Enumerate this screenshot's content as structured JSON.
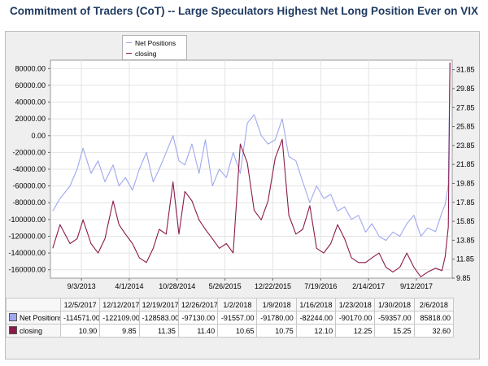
{
  "title": "Commitment of Traders (CoT) -- Large Speculators Highest Net Long Position Ever on VIX",
  "legend": {
    "net_positions": "Net Positions",
    "closing": "closing"
  },
  "colors": {
    "net_positions": "#9fa8ee",
    "closing": "#8b1a4a",
    "swatch_net": "#9fa8ee",
    "swatch_closing": "#8b1a4a"
  },
  "chart_data": {
    "type": "line",
    "title": "Commitment of Traders (CoT) -- Large Speculators Highest Net Long Position Ever on VIX",
    "xlabel": "",
    "ylabel": "",
    "grid": true,
    "legend_position": "top-left",
    "left_axis": {
      "ticks": [
        80000,
        60000,
        40000,
        20000,
        0,
        -20000,
        -40000,
        -60000,
        -80000,
        -100000,
        -120000,
        -140000,
        -160000
      ],
      "tick_labels": [
        "80000.00",
        "60000.00",
        "40000.00",
        "20000.00",
        "0.00",
        "-20000.00",
        "-40000.00",
        "-60000.00",
        "-80000.00",
        "-100000.00",
        "-120000.00",
        "-140000.00",
        "-160000.00"
      ],
      "range": [
        -170000,
        90000
      ]
    },
    "right_axis": {
      "ticks": [
        31.85,
        29.85,
        27.85,
        25.85,
        23.85,
        21.85,
        19.85,
        17.85,
        15.85,
        13.85,
        11.85,
        9.85
      ],
      "tick_labels": [
        "31.85",
        "29.85",
        "27.85",
        "25.85",
        "23.85",
        "21.85",
        "19.85",
        "17.85",
        "15.85",
        "13.85",
        "11.85",
        "9.85"
      ],
      "range": [
        9.85,
        32.85
      ]
    },
    "x_ticks": [
      "9/3/2013",
      "4/1/2014",
      "10/28/2014",
      "5/26/2015",
      "12/22/2015",
      "7/19/2016",
      "2/14/2017",
      "9/12/2017"
    ],
    "series": [
      {
        "name": "Net Positions",
        "axis": "left",
        "x": [
          "2013-04-30",
          "2013-06-01",
          "2013-07-15",
          "2013-08-15",
          "2013-09-10",
          "2013-10-15",
          "2013-11-15",
          "2013-12-15",
          "2014-01-20",
          "2014-02-15",
          "2014-03-15",
          "2014-04-15",
          "2014-05-15",
          "2014-06-15",
          "2014-07-15",
          "2014-08-10",
          "2014-09-10",
          "2014-10-10",
          "2014-11-05",
          "2014-12-01",
          "2015-01-01",
          "2015-02-01",
          "2015-03-01",
          "2015-04-01",
          "2015-05-01",
          "2015-06-01",
          "2015-07-01",
          "2015-08-01",
          "2015-09-01",
          "2015-10-01",
          "2015-11-01",
          "2015-12-01",
          "2016-01-01",
          "2016-02-01",
          "2016-03-01",
          "2016-04-01",
          "2016-05-01",
          "2016-06-01",
          "2016-07-01",
          "2016-08-01",
          "2016-09-01",
          "2016-10-01",
          "2016-11-01",
          "2016-12-01",
          "2017-01-01",
          "2017-02-01",
          "2017-03-01",
          "2017-04-01",
          "2017-05-01",
          "2017-06-01",
          "2017-07-01",
          "2017-08-01",
          "2017-09-01",
          "2017-10-01",
          "2017-11-01",
          "2017-12-05",
          "2018-01-02",
          "2018-01-16",
          "2018-01-30",
          "2018-02-06"
        ],
        "values": [
          -90000,
          -75000,
          -60000,
          -40000,
          -15000,
          -45000,
          -30000,
          -55000,
          -35000,
          -60000,
          -50000,
          -65000,
          -40000,
          -20000,
          -55000,
          -40000,
          -20000,
          0,
          -30000,
          -35000,
          -10000,
          -45000,
          -5000,
          -60000,
          -40000,
          -50000,
          -20000,
          -45000,
          15000,
          25000,
          0,
          -10000,
          -5000,
          20000,
          -25000,
          -30000,
          -55000,
          -80000,
          -60000,
          -75000,
          -70000,
          -90000,
          -85000,
          -100000,
          -95000,
          -115000,
          -105000,
          -120000,
          -125000,
          -115000,
          -120000,
          -105000,
          -95000,
          -120000,
          -110000,
          -114571,
          -91557,
          -82244,
          -59357,
          85818
        ]
      },
      {
        "name": "closing",
        "axis": "right",
        "x": [
          "2013-04-30",
          "2013-06-01",
          "2013-07-15",
          "2013-08-15",
          "2013-09-10",
          "2013-10-15",
          "2013-11-15",
          "2013-12-15",
          "2014-01-20",
          "2014-02-15",
          "2014-03-15",
          "2014-04-15",
          "2014-05-15",
          "2014-06-15",
          "2014-07-15",
          "2014-08-10",
          "2014-09-10",
          "2014-10-10",
          "2014-11-05",
          "2014-12-01",
          "2015-01-01",
          "2015-02-01",
          "2015-03-01",
          "2015-04-01",
          "2015-05-01",
          "2015-06-01",
          "2015-07-01",
          "2015-08-01",
          "2015-09-01",
          "2015-10-01",
          "2015-11-01",
          "2015-12-01",
          "2016-01-01",
          "2016-02-01",
          "2016-03-01",
          "2016-04-01",
          "2016-05-01",
          "2016-06-01",
          "2016-07-01",
          "2016-08-01",
          "2016-09-01",
          "2016-10-01",
          "2016-11-01",
          "2016-12-01",
          "2017-01-01",
          "2017-02-01",
          "2017-03-01",
          "2017-04-01",
          "2017-05-01",
          "2017-06-01",
          "2017-07-01",
          "2017-08-01",
          "2017-09-01",
          "2017-10-01",
          "2017-11-01",
          "2017-12-05",
          "2018-01-02",
          "2018-01-16",
          "2018-01-30",
          "2018-02-06"
        ],
        "values": [
          13.0,
          15.5,
          13.5,
          14.0,
          16.0,
          13.5,
          12.5,
          14.0,
          18.0,
          15.5,
          14.5,
          13.5,
          12.0,
          11.5,
          13.0,
          15.0,
          14.5,
          20.0,
          14.5,
          19.0,
          18.0,
          16.0,
          15.0,
          14.0,
          13.0,
          13.5,
          12.5,
          24.0,
          22.0,
          17.0,
          16.0,
          18.0,
          22.5,
          24.5,
          16.5,
          14.5,
          15.0,
          17.5,
          13.0,
          12.5,
          13.5,
          15.5,
          14.0,
          12.0,
          11.5,
          11.5,
          12.0,
          12.5,
          11.0,
          10.5,
          11.0,
          12.5,
          11.0,
          10.0,
          10.5,
          10.9,
          10.65,
          12.1,
          15.25,
          32.6
        ]
      }
    ],
    "table": {
      "dates": [
        "12/5/2017",
        "12/12/2017",
        "12/19/2017",
        "12/26/2017",
        "1/2/2018",
        "1/9/2018",
        "1/16/2018",
        "1/23/2018",
        "1/30/2018",
        "2/6/2018"
      ],
      "rows": [
        {
          "name": "Net Positions",
          "values": [
            "-114571.00",
            "-122109.00",
            "-128583.00",
            "-97130.00",
            "-91557.00",
            "-91780.00",
            "-82244.00",
            "-90170.00",
            "-59357.00",
            "85818.00"
          ]
        },
        {
          "name": "closing",
          "values": [
            "10.90",
            "9.85",
            "11.35",
            "11.40",
            "10.65",
            "10.75",
            "12.10",
            "12.25",
            "15.25",
            "32.60"
          ]
        }
      ]
    }
  }
}
